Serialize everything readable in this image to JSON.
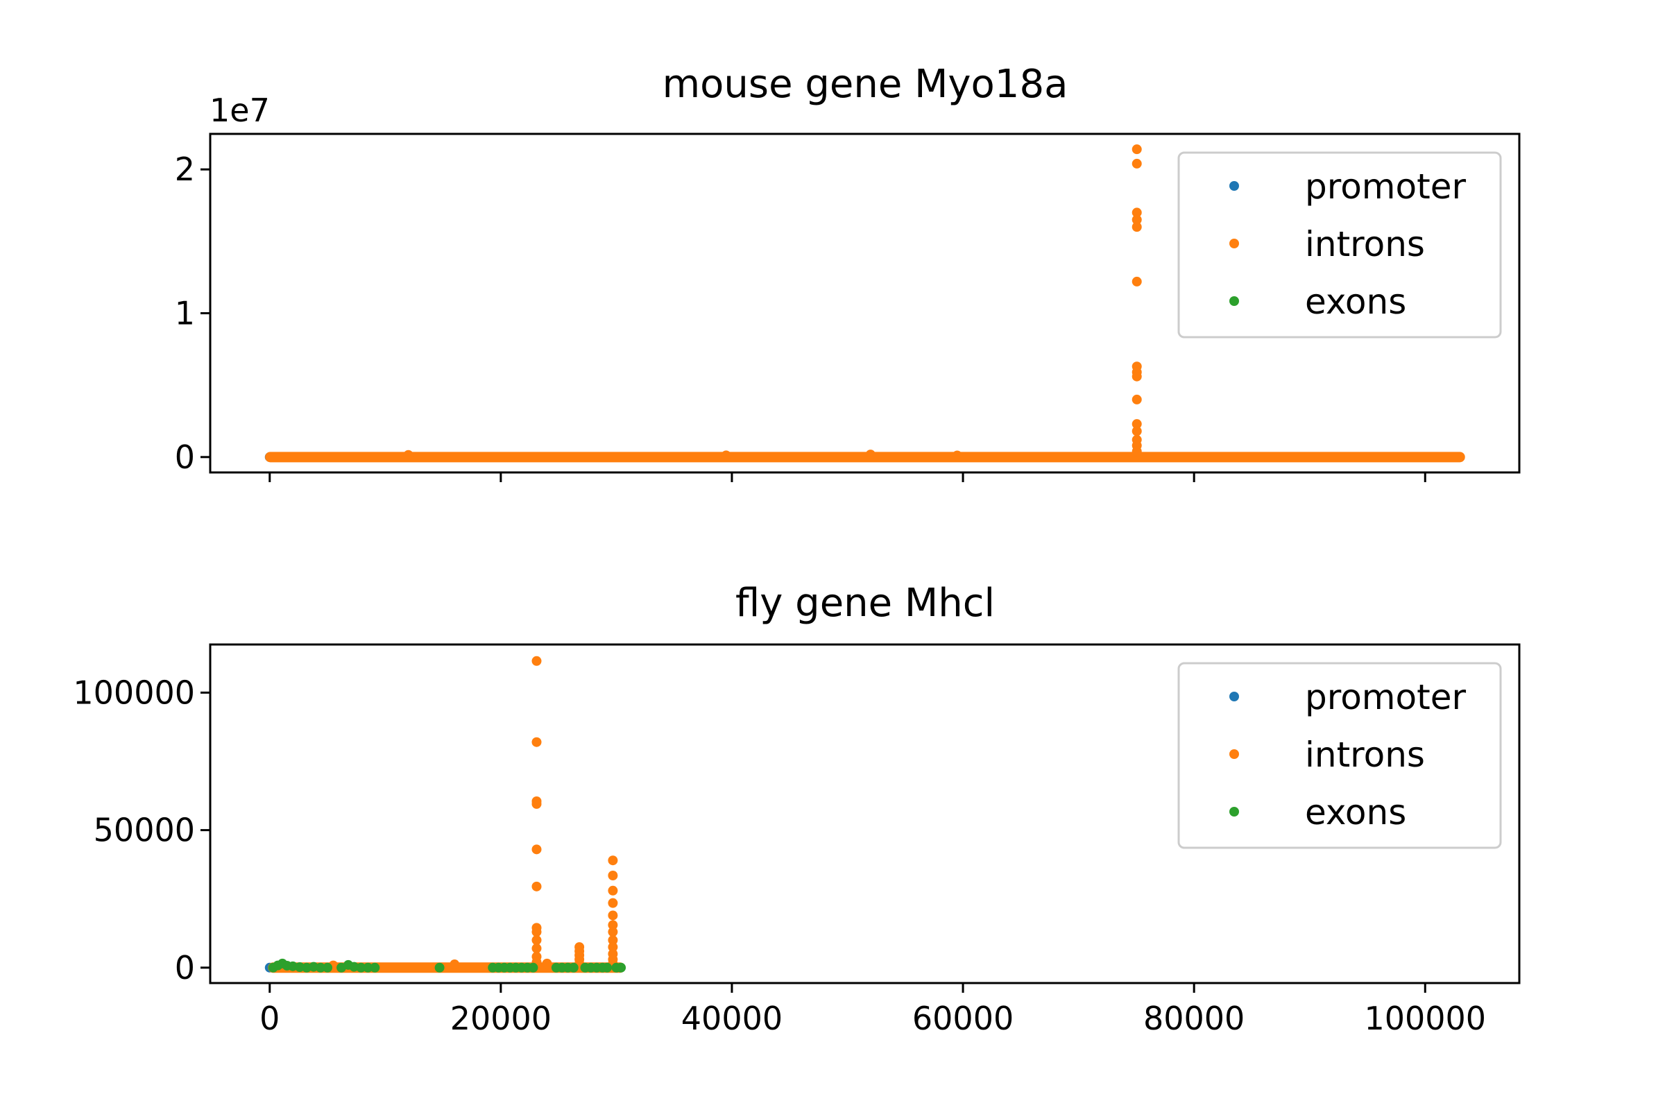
{
  "figure": {
    "background": "#ffffff",
    "series_colors": {
      "promoter": "#1f77b4",
      "introns": "#ff7f0e",
      "exons": "#2ca02c"
    }
  },
  "chart_data": [
    {
      "type": "scatter",
      "title": "mouse gene Myo18a",
      "xlabel": "",
      "ylabel": "",
      "xlim": [
        -5150,
        108150
      ],
      "ylim": [
        -1070000,
        22470000
      ],
      "x_ticks": [
        0,
        20000,
        40000,
        60000,
        80000,
        100000
      ],
      "x_tick_labels_visible": false,
      "y_ticks": [
        0,
        10000000,
        20000000
      ],
      "y_tick_labels": [
        "0",
        "1",
        "2"
      ],
      "y_offset_label": "1e7",
      "grid": false,
      "legend": {
        "placement": "upper right",
        "entries": [
          "promoter",
          "introns",
          "exons"
        ]
      },
      "series": [
        {
          "name": "promoter",
          "color": "#1f77b4",
          "points": [
            [
              0,
              0
            ]
          ]
        },
        {
          "name": "introns",
          "color": "#ff7f0e",
          "baseline": {
            "x_start": 50,
            "x_end": 103000,
            "y": 0
          },
          "points": [
            [
              12000,
              150000
            ],
            [
              39500,
              120000
            ],
            [
              52000,
              180000
            ],
            [
              59500,
              110000
            ],
            [
              75050,
              21400000
            ],
            [
              75050,
              20400000
            ],
            [
              75050,
              17000000
            ],
            [
              75050,
              16500000
            ],
            [
              75050,
              16000000
            ],
            [
              75050,
              12200000
            ],
            [
              75050,
              6300000
            ],
            [
              75050,
              5900000
            ],
            [
              75050,
              5600000
            ],
            [
              75050,
              4000000
            ],
            [
              75050,
              2300000
            ],
            [
              75050,
              1800000
            ],
            [
              75050,
              1200000
            ],
            [
              75050,
              800000
            ],
            [
              75050,
              400000
            ]
          ]
        },
        {
          "name": "exons",
          "color": "#2ca02c",
          "points": []
        }
      ]
    },
    {
      "type": "scatter",
      "title": "fly gene Mhcl",
      "xlabel": "",
      "ylabel": "",
      "xlim": [
        -5150,
        108150
      ],
      "ylim": [
        -5600,
        117500
      ],
      "x_ticks": [
        0,
        20000,
        40000,
        60000,
        80000,
        100000
      ],
      "x_tick_labels": [
        "0",
        "20000",
        "40000",
        "60000",
        "80000",
        "100000"
      ],
      "y_ticks": [
        0,
        50000,
        100000
      ],
      "y_tick_labels": [
        "0",
        "50000",
        "100000"
      ],
      "grid": false,
      "legend": {
        "placement": "upper right",
        "entries": [
          "promoter",
          "introns",
          "exons"
        ]
      },
      "series": [
        {
          "name": "promoter",
          "color": "#1f77b4",
          "points": [
            [
              0,
              0
            ]
          ]
        },
        {
          "name": "introns",
          "color": "#ff7f0e",
          "baseline": {
            "x_start": 300,
            "x_end": 30300,
            "y": 0
          },
          "points": [
            [
              5500,
              800
            ],
            [
              16000,
              1200
            ],
            [
              24000,
              1500
            ],
            [
              23100,
              111500
            ],
            [
              23100,
              82000
            ],
            [
              23100,
              60500
            ],
            [
              23100,
              59500
            ],
            [
              23100,
              43000
            ],
            [
              23100,
              29500
            ],
            [
              23100,
              14500
            ],
            [
              23100,
              13000
            ],
            [
              23100,
              10000
            ],
            [
              23100,
              7000
            ],
            [
              23100,
              4000
            ],
            [
              23100,
              2000
            ],
            [
              26800,
              7500
            ],
            [
              26800,
              6000
            ],
            [
              26800,
              4500
            ],
            [
              26800,
              3000
            ],
            [
              26800,
              1500
            ],
            [
              29700,
              39000
            ],
            [
              29700,
              33500
            ],
            [
              29700,
              28000
            ],
            [
              29700,
              23500
            ],
            [
              29700,
              19000
            ],
            [
              29700,
              15500
            ],
            [
              29700,
              13000
            ],
            [
              29700,
              10000
            ],
            [
              29700,
              7500
            ],
            [
              29700,
              5000
            ],
            [
              29700,
              3000
            ],
            [
              29700,
              1500
            ]
          ]
        },
        {
          "name": "exons",
          "color": "#2ca02c",
          "points": [
            [
              300,
              0
            ],
            [
              700,
              800
            ],
            [
              1100,
              1500
            ],
            [
              1500,
              700
            ],
            [
              2000,
              500
            ],
            [
              2600,
              200
            ],
            [
              3200,
              0
            ],
            [
              3800,
              300
            ],
            [
              4400,
              0
            ],
            [
              5000,
              0
            ],
            [
              6200,
              0
            ],
            [
              6800,
              1000
            ],
            [
              7300,
              300
            ],
            [
              7900,
              0
            ],
            [
              8500,
              0
            ],
            [
              9100,
              0
            ],
            [
              14700,
              0
            ],
            [
              19300,
              0
            ],
            [
              19800,
              0
            ],
            [
              20300,
              0
            ],
            [
              20800,
              0
            ],
            [
              21300,
              0
            ],
            [
              21800,
              0
            ],
            [
              22300,
              0
            ],
            [
              22800,
              0
            ],
            [
              24800,
              0
            ],
            [
              25300,
              0
            ],
            [
              25800,
              0
            ],
            [
              26300,
              0
            ],
            [
              27300,
              0
            ],
            [
              27800,
              0
            ],
            [
              28300,
              0
            ],
            [
              28800,
              0
            ],
            [
              29200,
              0
            ],
            [
              30000,
              0
            ],
            [
              30400,
              0
            ]
          ]
        }
      ]
    }
  ]
}
